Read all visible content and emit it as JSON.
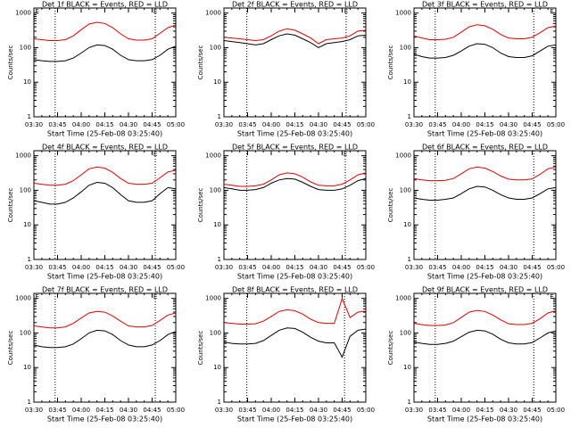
{
  "chart_data": [
    {
      "type": "line",
      "title": "Det 1f BLACK = Events, RED = LLD",
      "ylabel": "Counts/sec",
      "xlabel": "Start Time (25-Feb-08 03:25:40)",
      "categories": [
        "03:30",
        null,
        null,
        "03:45",
        null,
        null,
        "04:00",
        null,
        null,
        "04:15",
        null,
        null,
        "04:30",
        null,
        null,
        "04:45",
        null,
        null,
        "05:00"
      ],
      "log_y": true,
      "ylim": [
        1,
        1400
      ],
      "yticks": [
        1,
        10,
        100,
        1000
      ],
      "vlines": [
        2.7,
        15.4
      ],
      "flags": [
        {
          "x": 0.4,
          "text": "E"
        },
        {
          "x": 15.4,
          "text": "E"
        }
      ],
      "series": [
        {
          "name": "Events",
          "color": "#000000",
          "values": [
            45,
            42,
            40,
            40,
            42,
            50,
            70,
            100,
            120,
            115,
            90,
            60,
            45,
            42,
            42,
            45,
            60,
            90,
            110
          ]
        },
        {
          "name": "LLD",
          "color": "#e00000",
          "values": [
            180,
            170,
            160,
            160,
            170,
            220,
            330,
            480,
            540,
            500,
            380,
            250,
            180,
            165,
            165,
            180,
            260,
            380,
            450
          ]
        }
      ]
    },
    {
      "type": "line",
      "title": "Det 2f BLACK = Events, RED = LLD",
      "ylabel": "Counts/sec",
      "xlabel": "Start Time (25-Feb-08 03:25:40)",
      "categories": [
        "03:30",
        null,
        null,
        "03:45",
        null,
        null,
        "04:00",
        null,
        null,
        "04:15",
        null,
        null,
        "04:30",
        null,
        null,
        "04:45",
        null,
        null,
        "05:00"
      ],
      "log_y": true,
      "ylim": [
        1,
        1400
      ],
      "yticks": [
        1,
        10,
        100,
        1000
      ],
      "vlines": [
        2.9,
        15.5
      ],
      "flags": [
        {
          "x": 15.5,
          "text": "E"
        }
      ],
      "series": [
        {
          "name": "Events",
          "color": "#000000",
          "values": [
            160,
            150,
            140,
            130,
            120,
            130,
            170,
            220,
            250,
            230,
            180,
            140,
            100,
            130,
            140,
            150,
            170,
            220,
            230
          ]
        },
        {
          "name": "LLD",
          "color": "#e00000",
          "values": [
            200,
            190,
            180,
            170,
            160,
            170,
            220,
            300,
            350,
            320,
            250,
            190,
            130,
            170,
            180,
            190,
            220,
            300,
            320
          ]
        }
      ]
    },
    {
      "type": "line",
      "title": "Det 3f BLACK = Events, RED = LLD",
      "ylabel": "Counts/sec",
      "xlabel": "Start Time (25-Feb-08 03:25:40)",
      "categories": [
        "03:30",
        null,
        null,
        "03:45",
        null,
        null,
        "04:00",
        null,
        null,
        "04:15",
        null,
        null,
        "04:30",
        null,
        null,
        "04:45",
        null,
        null,
        "05:00"
      ],
      "log_y": true,
      "ylim": [
        1,
        1400
      ],
      "yticks": [
        1,
        10,
        100,
        1000
      ],
      "vlines": [
        2.7,
        15.2
      ],
      "flags": [
        {
          "x": 17.5,
          "text": "E"
        }
      ],
      "series": [
        {
          "name": "Events",
          "color": "#000000",
          "values": [
            65,
            55,
            50,
            50,
            52,
            60,
            80,
            110,
            130,
            125,
            100,
            70,
            55,
            52,
            52,
            58,
            80,
            110,
            120
          ]
        },
        {
          "name": "LLD",
          "color": "#e00000",
          "values": [
            220,
            190,
            170,
            170,
            175,
            200,
            280,
            400,
            460,
            430,
            340,
            240,
            190,
            180,
            180,
            200,
            270,
            380,
            420
          ]
        }
      ]
    },
    {
      "type": "line",
      "title": "Det 4f BLACK = Events, RED = LLD",
      "ylabel": "Counts/sec",
      "xlabel": "Start Time (25-Feb-08 03:25:40)",
      "categories": [
        "03:30",
        null,
        null,
        "03:45",
        null,
        null,
        "04:00",
        null,
        null,
        "04:15",
        null,
        null,
        "04:30",
        null,
        null,
        "04:45",
        null,
        null,
        "05:00"
      ],
      "log_y": true,
      "ylim": [
        1,
        1400
      ],
      "yticks": [
        1,
        10,
        100,
        1000
      ],
      "vlines": [
        2.7,
        15.4
      ],
      "flags": [
        {
          "x": 15.4,
          "text": "E"
        }
      ],
      "series": [
        {
          "name": "Events",
          "color": "#000000",
          "values": [
            50,
            45,
            40,
            40,
            45,
            60,
            90,
            140,
            170,
            160,
            120,
            75,
            50,
            45,
            45,
            50,
            80,
            120,
            110
          ]
        },
        {
          "name": "LLD",
          "color": "#e00000",
          "values": [
            160,
            150,
            140,
            140,
            150,
            190,
            280,
            420,
            470,
            440,
            330,
            220,
            160,
            150,
            150,
            160,
            230,
            340,
            380
          ]
        }
      ]
    },
    {
      "type": "line",
      "title": "Det 5f BLACK = Events, RED = LLD",
      "ylabel": "Counts/sec",
      "xlabel": "Start Time (25-Feb-08 03:25:40)",
      "categories": [
        "03:30",
        null,
        null,
        "03:45",
        null,
        null,
        "04:00",
        null,
        null,
        "04:15",
        null,
        null,
        "04:30",
        null,
        null,
        "04:45",
        null,
        null,
        "05:00"
      ],
      "log_y": true,
      "ylim": [
        1,
        1400
      ],
      "yticks": [
        1,
        10,
        100,
        1000
      ],
      "vlines": [
        2.9,
        15.4
      ],
      "flags": [
        {
          "x": 15.4,
          "text": "E"
        }
      ],
      "series": [
        {
          "name": "Events",
          "color": "#000000",
          "values": [
            120,
            110,
            100,
            100,
            105,
            120,
            160,
            200,
            220,
            210,
            170,
            130,
            105,
            100,
            100,
            110,
            140,
            190,
            220
          ]
        },
        {
          "name": "LLD",
          "color": "#e00000",
          "values": [
            150,
            140,
            130,
            130,
            135,
            150,
            200,
            280,
            320,
            300,
            240,
            175,
            140,
            135,
            135,
            150,
            200,
            280,
            320
          ]
        }
      ]
    },
    {
      "type": "line",
      "title": "Det 6f BLACK = Events, RED = LLD",
      "ylabel": "Counts/sec",
      "xlabel": "Start Time (25-Feb-08 03:25:40)",
      "categories": [
        "03:30",
        null,
        null,
        "03:45",
        null,
        null,
        "04:00",
        null,
        null,
        "04:15",
        null,
        null,
        "04:30",
        null,
        null,
        "04:45",
        null,
        null,
        "05:00"
      ],
      "log_y": true,
      "ylim": [
        1,
        1400
      ],
      "yticks": [
        1,
        10,
        100,
        1000
      ],
      "vlines": [
        2.7,
        15.2
      ],
      "flags": [],
      "series": [
        {
          "name": "Events",
          "color": "#000000",
          "values": [
            60,
            55,
            52,
            52,
            55,
            60,
            80,
            110,
            130,
            125,
            100,
            75,
            60,
            55,
            55,
            60,
            80,
            110,
            120
          ]
        },
        {
          "name": "LLD",
          "color": "#e00000",
          "values": [
            220,
            200,
            190,
            190,
            195,
            220,
            300,
            420,
            470,
            440,
            350,
            260,
            210,
            200,
            200,
            215,
            290,
            420,
            470
          ]
        }
      ]
    },
    {
      "type": "line",
      "title": "Det 7f BLACK = Events, RED = LLD",
      "ylabel": "Counts/sec",
      "xlabel": "Start Time (25-Feb-08 03:25:40)",
      "categories": [
        "03:30",
        null,
        null,
        "03:45",
        null,
        null,
        "04:00",
        null,
        null,
        "04:15",
        null,
        null,
        "04:30",
        null,
        null,
        "04:45",
        null,
        null,
        "05:00"
      ],
      "log_y": true,
      "ylim": [
        1,
        1400
      ],
      "yticks": [
        1,
        10,
        100,
        1000
      ],
      "vlines": [
        2.7,
        15.4
      ],
      "flags": [
        {
          "x": 0.4,
          "text": "E"
        },
        {
          "x": 15.4,
          "text": "E"
        }
      ],
      "series": [
        {
          "name": "Events",
          "color": "#000000",
          "values": [
            45,
            40,
            38,
            38,
            40,
            48,
            68,
            100,
            120,
            115,
            90,
            60,
            45,
            40,
            40,
            45,
            60,
            90,
            110
          ]
        },
        {
          "name": "LLD",
          "color": "#e00000",
          "values": [
            160,
            150,
            140,
            140,
            150,
            190,
            270,
            380,
            420,
            400,
            310,
            220,
            160,
            150,
            150,
            165,
            230,
            330,
            380
          ]
        }
      ]
    },
    {
      "type": "line",
      "title": "Det 8f BLACK = Events, RED = LLD",
      "ylabel": "Counts/sec",
      "xlabel": "Start Time (25-Feb-08 03:25:40)",
      "categories": [
        "03:30",
        null,
        null,
        "03:45",
        null,
        null,
        "04:00",
        null,
        null,
        "04:15",
        null,
        null,
        "04:30",
        null,
        null,
        "04:45",
        null,
        null,
        "05:00"
      ],
      "log_y": true,
      "ylim": [
        1,
        1400
      ],
      "yticks": [
        1,
        10,
        100,
        1000
      ],
      "vlines": [
        2.9,
        15.3
      ],
      "flags": [],
      "series": [
        {
          "name": "Events",
          "color": "#000000",
          "values": [
            55,
            50,
            48,
            48,
            50,
            60,
            85,
            120,
            140,
            135,
            105,
            75,
            58,
            52,
            52,
            20,
            80,
            120,
            130
          ]
        },
        {
          "name": "LLD",
          "color": "#e00000",
          "values": [
            200,
            190,
            180,
            180,
            185,
            220,
            300,
            420,
            470,
            440,
            350,
            250,
            200,
            190,
            190,
            1000,
            280,
            400,
            430
          ]
        }
      ]
    },
    {
      "type": "line",
      "title": "Det 9f BLACK = Events, RED = LLD",
      "ylabel": "Counts/sec",
      "xlabel": "Start Time (25-Feb-08 03:25:40)",
      "categories": [
        "03:30",
        null,
        null,
        "03:45",
        null,
        null,
        "04:00",
        null,
        null,
        "04:15",
        null,
        null,
        "04:30",
        null,
        null,
        "04:45",
        null,
        null,
        "05:00"
      ],
      "log_y": true,
      "ylim": [
        1,
        1400
      ],
      "yticks": [
        1,
        10,
        100,
        1000
      ],
      "vlines": [
        2.7,
        15.2
      ],
      "flags": [
        {
          "x": 17.5,
          "text": "E"
        }
      ],
      "series": [
        {
          "name": "Events",
          "color": "#000000",
          "values": [
            55,
            50,
            47,
            47,
            50,
            58,
            78,
            105,
            120,
            115,
            92,
            66,
            52,
            48,
            48,
            53,
            72,
            100,
            115
          ]
        },
        {
          "name": "LLD",
          "color": "#e00000",
          "values": [
            190,
            175,
            165,
            165,
            170,
            200,
            280,
            400,
            450,
            420,
            330,
            240,
            185,
            175,
            175,
            190,
            260,
            380,
            440
          ]
        }
      ]
    }
  ]
}
